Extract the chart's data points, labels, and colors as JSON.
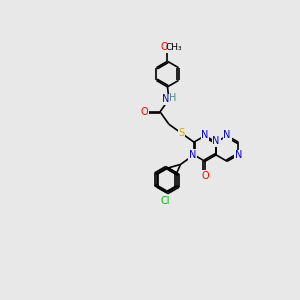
{
  "bg_color": "#e8e8e8",
  "atom_colors": {
    "C": "#000000",
    "N": "#0000cc",
    "O": "#ff0000",
    "S": "#ccaa00",
    "Cl": "#00bb00",
    "H": "#4a8a8a"
  },
  "bond_color": "#000000",
  "font_size": 7.0,
  "lw": 1.2
}
